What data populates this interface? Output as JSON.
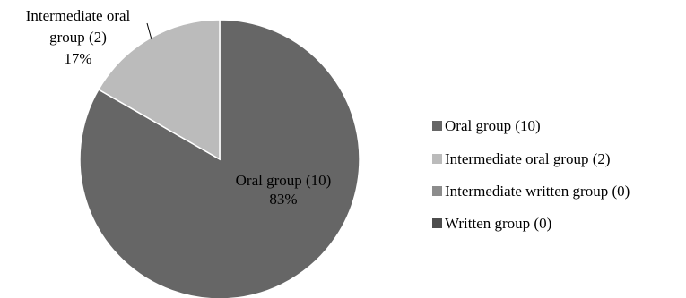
{
  "chart_data": {
    "type": "pie",
    "title": "",
    "legend_position": "right",
    "slices": [
      {
        "name": "Oral group (10)",
        "value": 10,
        "percent_label": "83%",
        "color": "#666666",
        "label_line1": "Oral group (10)",
        "label_line2": "83%"
      },
      {
        "name": "Intermediate oral group (2)",
        "value": 2,
        "percent_label": "17%",
        "color": "#bbbbbb",
        "label_line1": "Intermediate oral",
        "label_line2": "group (2)",
        "label_line3": "17%"
      },
      {
        "name": "Intermediate written group (0)",
        "value": 0,
        "color": "#8c8c8c"
      },
      {
        "name": "Written group (0)",
        "value": 0,
        "color": "#4d4d4d"
      }
    ]
  }
}
